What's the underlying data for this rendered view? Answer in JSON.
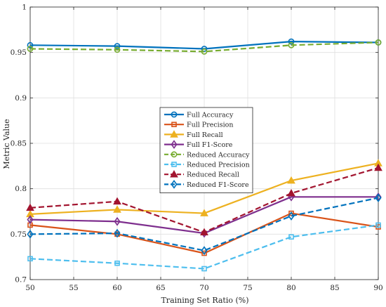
{
  "chart_data": {
    "type": "line",
    "title": "",
    "xlabel": "Training Set Ratio (%)",
    "ylabel": "Metric Value",
    "xlim": [
      50,
      90
    ],
    "ylim": [
      0.7,
      1.0
    ],
    "x": [
      50,
      60,
      70,
      80,
      90
    ],
    "xticks": [
      "50",
      "55",
      "60",
      "65",
      "70",
      "75",
      "80",
      "85",
      "90"
    ],
    "yticks": [
      "0.7",
      "0.75",
      "0.8",
      "0.85",
      "0.9",
      "0.95",
      "1"
    ],
    "grid": true,
    "legend_position": "center",
    "series": [
      {
        "name": "Full Accuracy",
        "values": [
          0.958,
          0.957,
          0.954,
          0.962,
          0.961
        ],
        "color": "#0072BD",
        "dash": "solid",
        "marker": "circle"
      },
      {
        "name": "Full Precision",
        "values": [
          0.76,
          0.75,
          0.729,
          0.773,
          0.758
        ],
        "color": "#D95319",
        "dash": "solid",
        "marker": "square"
      },
      {
        "name": "Full Recall",
        "values": [
          0.772,
          0.777,
          0.773,
          0.809,
          0.828
        ],
        "color": "#EDB120",
        "dash": "solid",
        "marker": "triangle"
      },
      {
        "name": "Full F1-Score",
        "values": [
          0.766,
          0.764,
          0.751,
          0.791,
          0.791
        ],
        "color": "#7E2F8E",
        "dash": "solid",
        "marker": "diamond"
      },
      {
        "name": "Reduced Accuracy",
        "values": [
          0.954,
          0.953,
          0.951,
          0.958,
          0.961
        ],
        "color": "#77AC30",
        "dash": "dashed",
        "marker": "circle"
      },
      {
        "name": "Reduced Precision",
        "values": [
          0.723,
          0.718,
          0.712,
          0.747,
          0.76
        ],
        "color": "#4DBEEE",
        "dash": "dashed",
        "marker": "square"
      },
      {
        "name": "Reduced Recall",
        "values": [
          0.779,
          0.786,
          0.752,
          0.795,
          0.823
        ],
        "color": "#A2142F",
        "dash": "dashed",
        "marker": "triangle"
      },
      {
        "name": "Reduced F1-Score",
        "values": [
          0.75,
          0.751,
          0.732,
          0.77,
          0.79
        ],
        "color": "#0072BD",
        "dash": "dashed",
        "marker": "diamond"
      }
    ]
  }
}
